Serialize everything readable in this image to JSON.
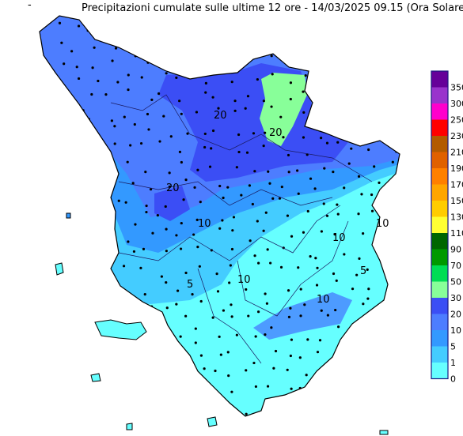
{
  "header": {
    "mark": "-",
    "title": "Precipitazioni cumulate sulle ultime 12 ore - 14/03/2025 09.15 (Ora Solare)"
  },
  "legend": {
    "items": [
      {
        "label": "350",
        "color": "#660099"
      },
      {
        "label": "300",
        "color": "#9933cc"
      },
      {
        "label": "250",
        "color": "#ff00cc"
      },
      {
        "label": "230",
        "color": "#ff0000"
      },
      {
        "label": "210",
        "color": "#b35a00"
      },
      {
        "label": "190",
        "color": "#e06000"
      },
      {
        "label": "170",
        "color": "#ff7f00"
      },
      {
        "label": "150",
        "color": "#ffa500"
      },
      {
        "label": "130",
        "color": "#ffcc00"
      },
      {
        "label": "110",
        "color": "#ffff33"
      },
      {
        "label": "90",
        "color": "#006600"
      },
      {
        "label": "70",
        "color": "#009900"
      },
      {
        "label": "50",
        "color": "#00dd55"
      },
      {
        "label": "30",
        "color": "#88ff99"
      },
      {
        "label": "20",
        "color": "#3b4ef5"
      },
      {
        "label": "10",
        "color": "#4d7dff"
      },
      {
        "label": "5",
        "color": "#3399ff"
      },
      {
        "label": "1",
        "color": "#44ccff"
      },
      {
        "label": "0",
        "color": "#66ffff"
      }
    ],
    "last_color": "#ffffff"
  },
  "map": {
    "contour_labels": [
      "20",
      "20",
      "10",
      "10",
      "10",
      "5",
      "10",
      "5",
      "10",
      "20"
    ]
  }
}
